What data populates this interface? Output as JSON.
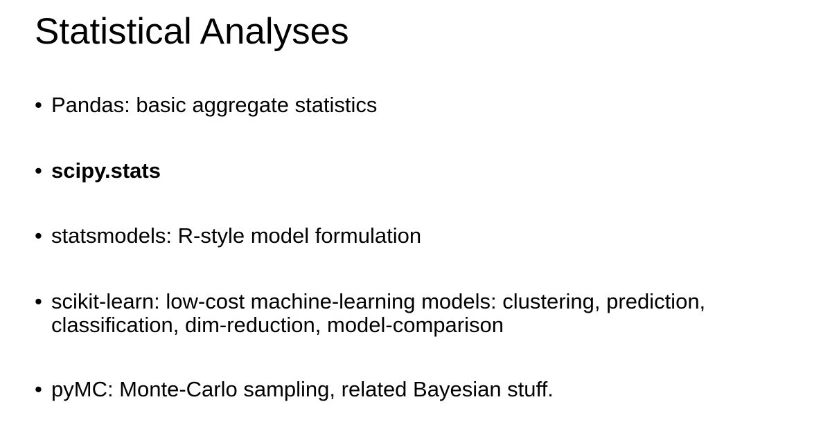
{
  "slide": {
    "title": "Statistical Analyses",
    "bullet_glyph": "•",
    "bullets": [
      {
        "text": "Pandas: basic aggregate statistics"
      },
      {
        "text": "scipy.stats"
      },
      {
        "text": "statsmodels: R-style model formulation"
      },
      {
        "text": "scikit-learn: low-cost machine-learning models: clustering, prediction, classification, dim-reduction, model-comparison"
      },
      {
        "text": "pyMC: Monte-Carlo sampling, related Bayesian stuff."
      }
    ]
  }
}
